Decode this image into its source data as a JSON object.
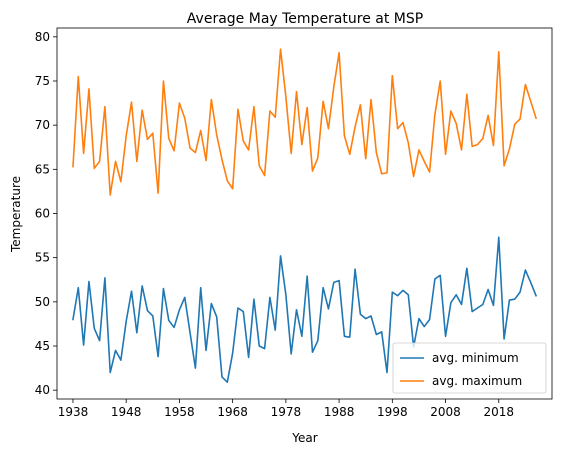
{
  "chart_data": {
    "type": "line",
    "title": "Average May Temperature at MSP",
    "xlabel": "Year",
    "ylabel": "Temperature",
    "xlim": [
      1935,
      2028
    ],
    "ylim": [
      39,
      81
    ],
    "xticks": [
      "1938",
      "1948",
      "1958",
      "1968",
      "1978",
      "1988",
      "1998",
      "2008",
      "2018"
    ],
    "yticks": [
      "40",
      "45",
      "50",
      "55",
      "60",
      "65",
      "70",
      "75",
      "80"
    ],
    "grid": false,
    "legend_position": "lower-right",
    "x": [
      1938,
      1939,
      1940,
      1941,
      1942,
      1943,
      1944,
      1945,
      1946,
      1947,
      1948,
      1949,
      1950,
      1951,
      1952,
      1953,
      1954,
      1955,
      1956,
      1957,
      1958,
      1959,
      1960,
      1961,
      1962,
      1963,
      1964,
      1965,
      1966,
      1967,
      1968,
      1969,
      1970,
      1971,
      1972,
      1973,
      1974,
      1975,
      1976,
      1977,
      1978,
      1979,
      1980,
      1981,
      1982,
      1983,
      1984,
      1985,
      1986,
      1987,
      1988,
      1989,
      1990,
      1991,
      1992,
      1993,
      1994,
      1995,
      1996,
      1997,
      1998,
      1999,
      2000,
      2001,
      2002,
      2003,
      2004,
      2005,
      2006,
      2007,
      2008,
      2009,
      2010,
      2011,
      2012,
      2013,
      2014,
      2015,
      2016,
      2017,
      2018,
      2019,
      2020,
      2021,
      2022,
      2023,
      2024,
      2025
    ],
    "series": [
      {
        "name": "avg. minimum",
        "color": "#1f77b4",
        "values": [
          48.0,
          51.6,
          45.1,
          52.3,
          47.0,
          45.6,
          52.7,
          42.0,
          44.5,
          43.4,
          47.8,
          51.2,
          46.5,
          51.8,
          49.0,
          48.4,
          43.8,
          51.5,
          47.9,
          47.1,
          49.1,
          50.5,
          46.5,
          42.5,
          51.6,
          44.5,
          49.8,
          48.3,
          41.5,
          40.9,
          44.2,
          49.3,
          48.9,
          43.7,
          50.3,
          45.0,
          44.7,
          50.5,
          46.8,
          55.2,
          50.8,
          44.1,
          49.1,
          46.1,
          52.9,
          44.3,
          45.6,
          51.6,
          49.2,
          52.2,
          52.4,
          46.1,
          46.0,
          53.7,
          48.6,
          48.1,
          48.4,
          46.3,
          46.6,
          42.0,
          51.1,
          50.7,
          51.3,
          50.8,
          44.9,
          48.1,
          47.2,
          48.0,
          52.6,
          53.0,
          46.1,
          49.9,
          50.8,
          49.7,
          53.8,
          48.9,
          49.3,
          49.7,
          51.4,
          49.6,
          57.3,
          45.8,
          50.2,
          50.3,
          51.1,
          53.6,
          52.2,
          50.7
        ]
      },
      {
        "name": "avg. maximum",
        "color": "#ff7f0e",
        "values": [
          65.3,
          75.5,
          66.8,
          74.1,
          65.1,
          65.9,
          72.1,
          62.1,
          65.9,
          63.6,
          68.8,
          72.6,
          65.9,
          71.7,
          68.4,
          69.1,
          62.3,
          75.0,
          68.5,
          67.1,
          72.5,
          70.8,
          67.4,
          66.9,
          69.4,
          66.0,
          72.9,
          68.9,
          66.1,
          63.7,
          62.8,
          71.8,
          68.2,
          67.2,
          72.1,
          65.4,
          64.3,
          71.6,
          70.9,
          78.6,
          73.2,
          66.8,
          73.8,
          67.8,
          72.0,
          64.8,
          66.3,
          72.7,
          69.6,
          74.3,
          78.2,
          68.8,
          66.7,
          69.8,
          72.3,
          66.2,
          72.9,
          66.9,
          64.5,
          64.6,
          75.6,
          69.6,
          70.3,
          68.0,
          64.2,
          67.2,
          65.9,
          64.7,
          71.2,
          75.0,
          66.7,
          71.6,
          70.2,
          67.2,
          73.5,
          67.6,
          67.8,
          68.5,
          71.1,
          67.7,
          78.3,
          65.4,
          67.3,
          70.1,
          70.7,
          74.6,
          72.7,
          70.8
        ]
      }
    ]
  }
}
